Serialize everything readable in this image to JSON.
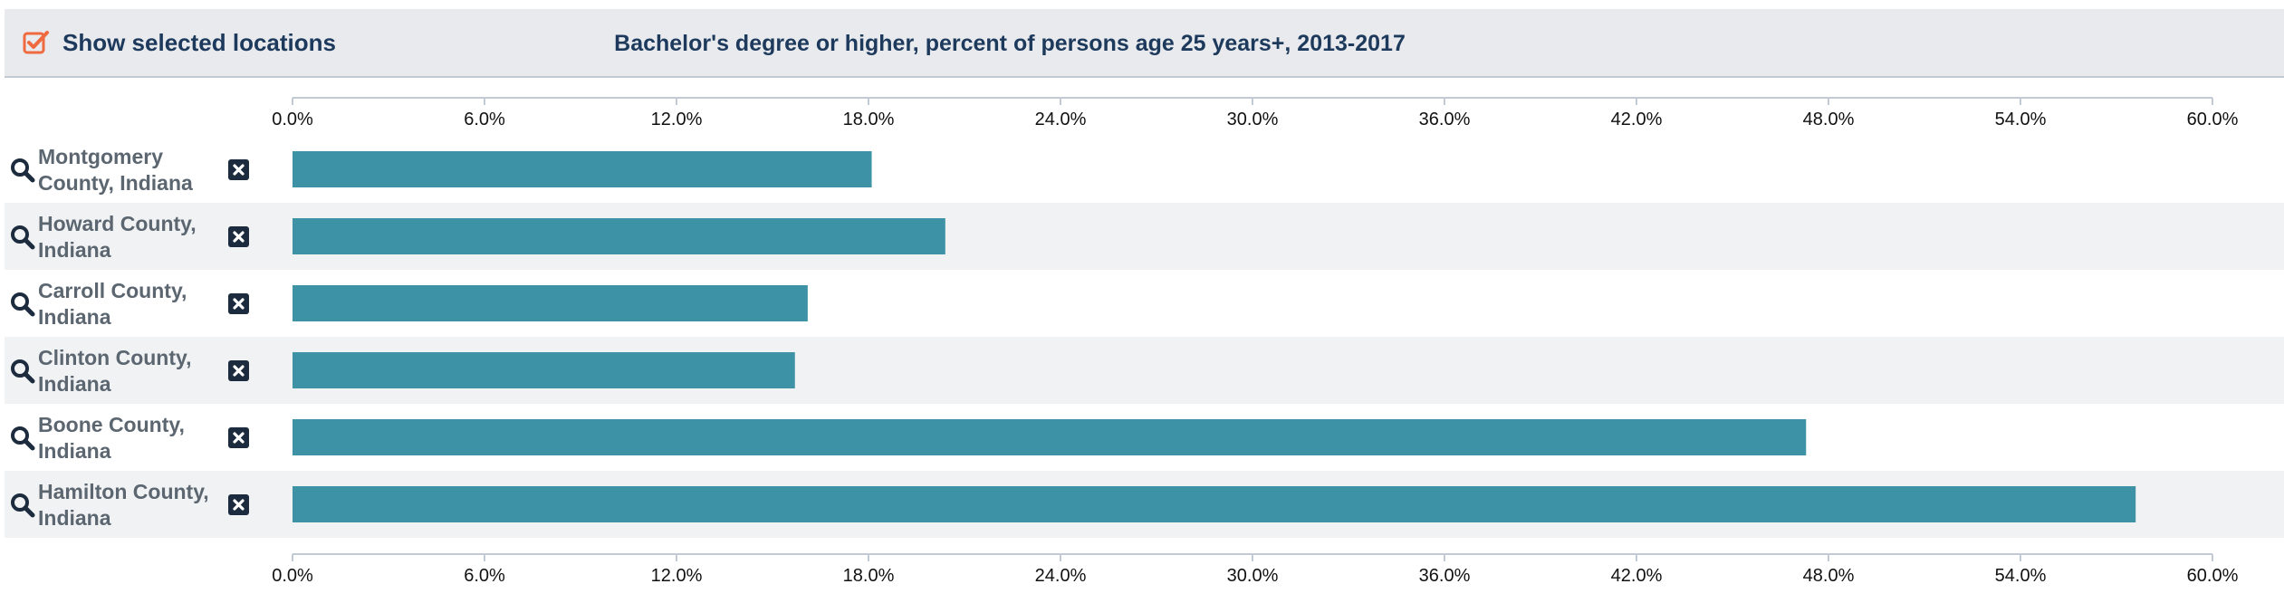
{
  "header": {
    "toggle_label": "Show selected locations",
    "toggle_checked": true,
    "title": "Bachelor's degree or higher, percent of persons age 25 years+, 2013-2017"
  },
  "icons": {
    "checkbox": "checkbox-checked-icon",
    "search": "search-icon",
    "remove": "remove-icon"
  },
  "colors": {
    "bar": "#3d92a6",
    "row_alt": "#f1f2f4",
    "title_text": "#1d3a5c",
    "label_text": "#5b6670",
    "checkbox": "#ef6a3f",
    "icon_dark": "#1c2b3d",
    "axis": "#c2cad3"
  },
  "chart_data": {
    "type": "bar",
    "orientation": "horizontal",
    "title": "Bachelor's degree or higher, percent of persons age 25 years+, 2013-2017",
    "xlim": [
      0,
      60
    ],
    "x_ticks": [
      "0.0%",
      "6.0%",
      "12.0%",
      "18.0%",
      "24.0%",
      "30.0%",
      "36.0%",
      "42.0%",
      "48.0%",
      "54.0%",
      "60.0%"
    ],
    "tick_values": [
      0,
      6,
      12,
      18,
      24,
      30,
      36,
      42,
      48,
      54,
      60
    ],
    "axis_position": "top-and-bottom",
    "grid": false,
    "categories": [
      [
        "Montgomery",
        "County, Indiana"
      ],
      [
        "Howard County,",
        "Indiana"
      ],
      [
        "Carroll County,",
        "Indiana"
      ],
      [
        "Clinton County,",
        "Indiana"
      ],
      [
        "Boone County,",
        "Indiana"
      ],
      [
        "Hamilton County,",
        "Indiana"
      ]
    ],
    "values": [
      18.1,
      20.4,
      16.1,
      15.7,
      47.3,
      57.6
    ]
  }
}
